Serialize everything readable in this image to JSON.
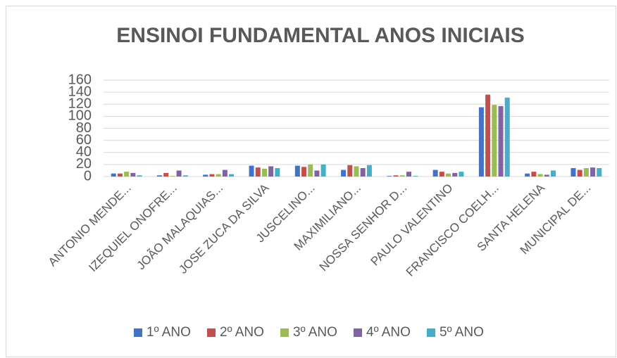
{
  "chart_data": {
    "type": "bar",
    "title": "ENSINOI FUNDAMENTAL ANOS INICIAIS",
    "categories": [
      "ANTONIO MENDE...",
      "IZEQUIEL ONOFRE...",
      "JOÃO MALAQUIAS...",
      "JOSE ZUCA DA SILVA",
      "JUSCELINO...",
      "MAXIMILIANO...",
      "NOSSA SENHOR D...",
      "PAULO VALENTINO",
      "FRANCISCO COELH...",
      "SANTA HELENA",
      "MUNICIPAL DE..."
    ],
    "series": [
      {
        "name": "1º ANO",
        "color": "#4472c4",
        "values": [
          5,
          2,
          3,
          18,
          18,
          11,
          1,
          11,
          115,
          5,
          14
        ]
      },
      {
        "name": "2º ANO",
        "color": "#c0504d",
        "values": [
          5,
          6,
          4,
          15,
          16,
          19,
          2,
          8,
          136,
          8,
          11
        ]
      },
      {
        "name": "3º ANO",
        "color": "#9bbb59",
        "values": [
          8,
          1,
          4,
          13,
          20,
          17,
          2,
          5,
          119,
          4,
          14
        ]
      },
      {
        "name": "4º ANO",
        "color": "#8064a2",
        "values": [
          6,
          10,
          11,
          17,
          10,
          14,
          8,
          6,
          117,
          3,
          15
        ]
      },
      {
        "name": "5º ANO",
        "color": "#4bacc6",
        "values": [
          2,
          2,
          4,
          14,
          20,
          19,
          1,
          8,
          131,
          10,
          14
        ]
      }
    ],
    "ylim": [
      0,
      160
    ],
    "yticks": [
      0,
      20,
      40,
      60,
      80,
      100,
      120,
      140,
      160
    ],
    "grid": true,
    "legend": "bottom"
  }
}
